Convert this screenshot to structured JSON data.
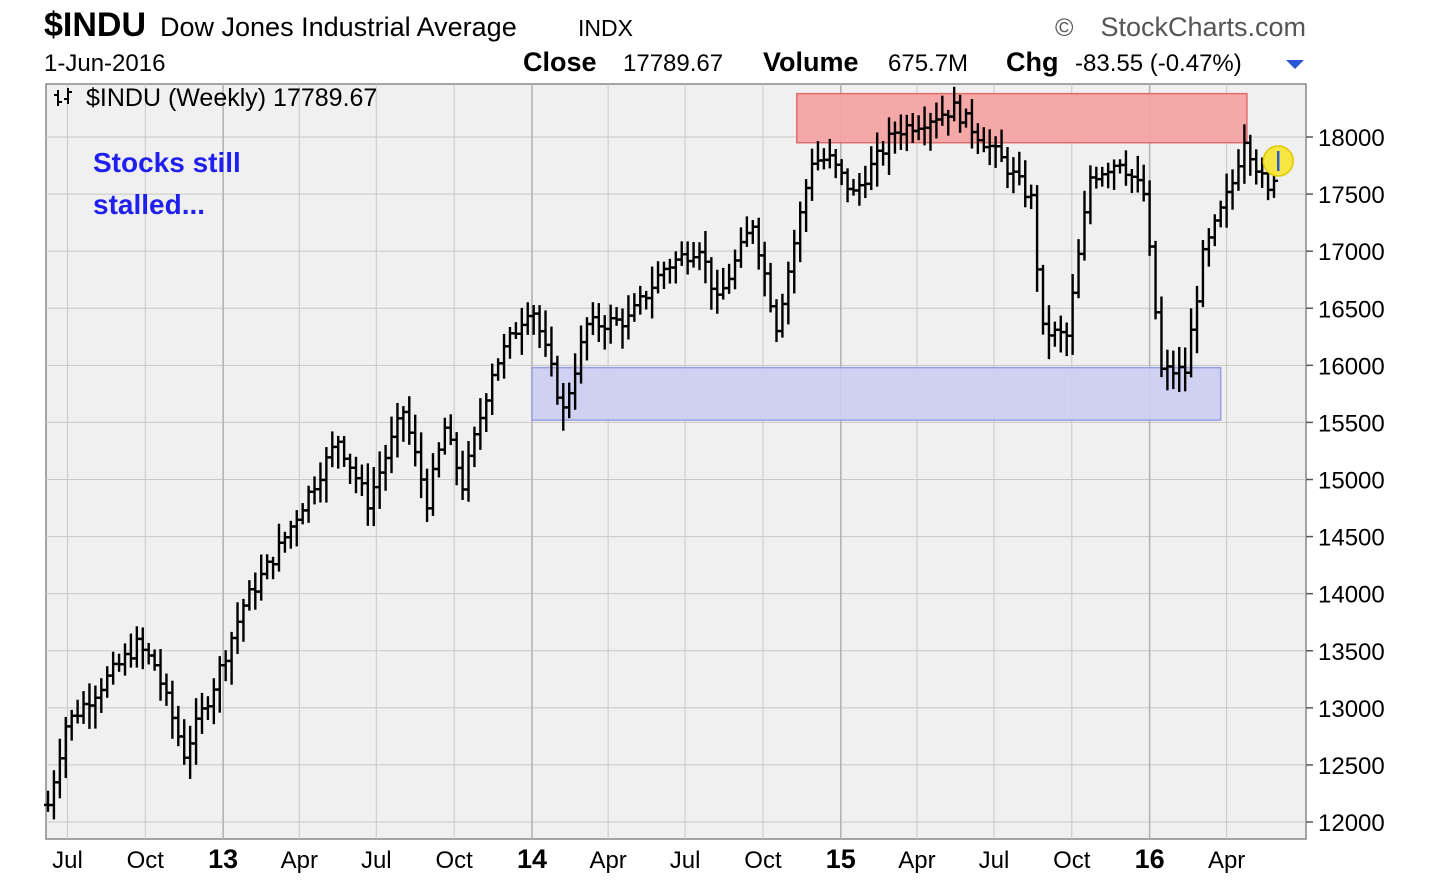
{
  "header": {
    "symbol": "$INDU",
    "name": "Dow Jones Industrial Average",
    "exchange": "INDX",
    "brand": "StockCharts.com",
    "brand_symbol": "©",
    "date": "1-Jun-2016",
    "close_label": "Close",
    "close_value": "17789.67",
    "volume_label": "Volume",
    "volume_value": "675.7M",
    "chg_label": "Chg",
    "chg_value": "-83.55 (-0.47%)"
  },
  "legend": {
    "icon": "price-bar-icon",
    "text": "$INDU (Weekly) 17789.67"
  },
  "annotation": {
    "line1": "Stocks still",
    "line2": "stalled..."
  },
  "colors": {
    "resistance_zone": "#f4a3a3",
    "resistance_border": "#e06b6b",
    "support_zone": "#cccdf2",
    "support_border": "#9b9ee0",
    "annotation_text": "#1f1ff0",
    "plot_bg": "#f0f0f0",
    "grid": "#c8c8c8",
    "bars": "#000000",
    "last_price_marker": "#f5e642"
  },
  "chart_data": {
    "type": "bar",
    "subtype": "ohlc-weekly",
    "title": "$INDU Dow Jones Industrial Average INDX",
    "ylim": [
      11900,
      18600
    ],
    "y_ticks": [
      12000,
      12500,
      13000,
      13500,
      14000,
      14500,
      15000,
      15500,
      16000,
      16500,
      17000,
      17500,
      18000
    ],
    "x_ticks": [
      {
        "label": "Jul",
        "major": false,
        "date": "2012-07-01"
      },
      {
        "label": "Oct",
        "major": false,
        "date": "2012-10-01"
      },
      {
        "label": "13",
        "major": true,
        "date": "2013-01-01"
      },
      {
        "label": "Apr",
        "major": false,
        "date": "2013-04-01"
      },
      {
        "label": "Jul",
        "major": false,
        "date": "2013-07-01"
      },
      {
        "label": "Oct",
        "major": false,
        "date": "2013-10-01"
      },
      {
        "label": "14",
        "major": true,
        "date": "2014-01-01"
      },
      {
        "label": "Apr",
        "major": false,
        "date": "2014-04-01"
      },
      {
        "label": "Jul",
        "major": false,
        "date": "2014-07-01"
      },
      {
        "label": "Oct",
        "major": false,
        "date": "2014-10-01"
      },
      {
        "label": "15",
        "major": true,
        "date": "2015-01-01"
      },
      {
        "label": "Apr",
        "major": false,
        "date": "2015-04-01"
      },
      {
        "label": "Jul",
        "major": false,
        "date": "2015-07-01"
      },
      {
        "label": "Oct",
        "major": false,
        "date": "2015-10-01"
      },
      {
        "label": "16",
        "major": true,
        "date": "2016-01-01"
      },
      {
        "label": "Apr",
        "major": false,
        "date": "2016-04-01"
      }
    ],
    "xlim": [
      "2012-06-08",
      "2016-06-22"
    ],
    "zones": [
      {
        "name": "resistance",
        "from": "2014-11-10",
        "to": "2016-04-25",
        "ylow": 17950,
        "yhigh": 18380
      },
      {
        "name": "support",
        "from": "2014-01-01",
        "to": "2016-03-25",
        "ylow": 15520,
        "yhigh": 15980
      }
    ],
    "last_close": 17789.67,
    "anchors": [
      [
        "2012-06-08",
        12150
      ],
      [
        "2012-06-29",
        12850
      ],
      [
        "2012-08-10",
        13200
      ],
      [
        "2012-09-21",
        13550
      ],
      [
        "2012-10-12",
        13380
      ],
      [
        "2012-11-16",
        12600
      ],
      [
        "2012-12-21",
        13200
      ],
      [
        "2013-01-25",
        13900
      ],
      [
        "2013-03-08",
        14400
      ],
      [
        "2013-05-17",
        15350
      ],
      [
        "2013-06-21",
        14800
      ],
      [
        "2013-08-02",
        15600
      ],
      [
        "2013-08-30",
        14810
      ],
      [
        "2013-09-20",
        15450
      ],
      [
        "2013-10-11",
        14950
      ],
      [
        "2013-11-15",
        15950
      ],
      [
        "2013-12-31",
        16550
      ],
      [
        "2014-02-07",
        15600
      ],
      [
        "2014-03-07",
        16350
      ],
      [
        "2014-04-25",
        16400
      ],
      [
        "2014-06-06",
        16850
      ],
      [
        "2014-07-18",
        17050
      ],
      [
        "2014-08-08",
        16550
      ],
      [
        "2014-09-19",
        17250
      ],
      [
        "2014-10-17",
        16350
      ],
      [
        "2014-11-28",
        17800
      ],
      [
        "2014-12-19",
        17800
      ],
      [
        "2015-01-16",
        17500
      ],
      [
        "2015-03-06",
        18050
      ],
      [
        "2015-05-15",
        18250
      ],
      [
        "2015-07-10",
        17800
      ],
      [
        "2015-08-14",
        17450
      ],
      [
        "2015-08-28",
        16300
      ],
      [
        "2015-09-25",
        16250
      ],
      [
        "2015-10-23",
        17650
      ],
      [
        "2015-11-27",
        17800
      ],
      [
        "2015-12-25",
        17500
      ],
      [
        "2016-01-15",
        15950
      ],
      [
        "2016-02-12",
        15950
      ],
      [
        "2016-03-04",
        16950
      ],
      [
        "2016-04-08",
        17600
      ],
      [
        "2016-04-22",
        18000
      ],
      [
        "2016-05-20",
        17500
      ],
      [
        "2016-06-01",
        17789.67
      ]
    ]
  }
}
